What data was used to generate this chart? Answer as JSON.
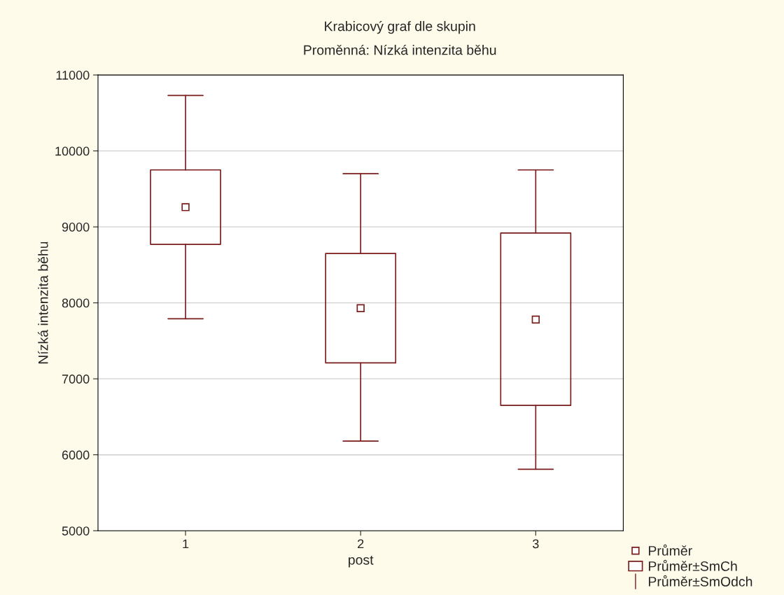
{
  "chart_data": {
    "type": "box",
    "title": "Krabicový graf dle skupin",
    "subtitle": "Proměnná: Nízká intenzita běhu",
    "xlabel": "post",
    "ylabel": "Nízká intenzita běhu",
    "categories": [
      "1",
      "2",
      "3"
    ],
    "series": [
      {
        "name": "Průměr",
        "type": "scatter",
        "x": [
          "1",
          "2",
          "3"
        ],
        "values": [
          9260,
          7930,
          7780
        ],
        "color": "#7b1c1c"
      },
      {
        "name": "Průměr±SmCh",
        "color": "#7b1c1c",
        "boxes": [
          {
            "low": 7790,
            "q1": 8770,
            "q3": 9750,
            "high": 10730
          },
          {
            "low": 6180,
            "q1": 7210,
            "q3": 8650,
            "high": 9700
          },
          {
            "low": 5810,
            "q1": 6650,
            "q3": 8920,
            "high": 9750
          }
        ]
      }
    ],
    "ylim": [
      5000,
      11000
    ],
    "yticks": [
      5000,
      6000,
      7000,
      8000,
      9000,
      10000,
      11000
    ],
    "grid": "y",
    "legend": "bottom right",
    "marker": "square",
    "annotations": [
      "Průměr±SmOdch"
    ]
  }
}
